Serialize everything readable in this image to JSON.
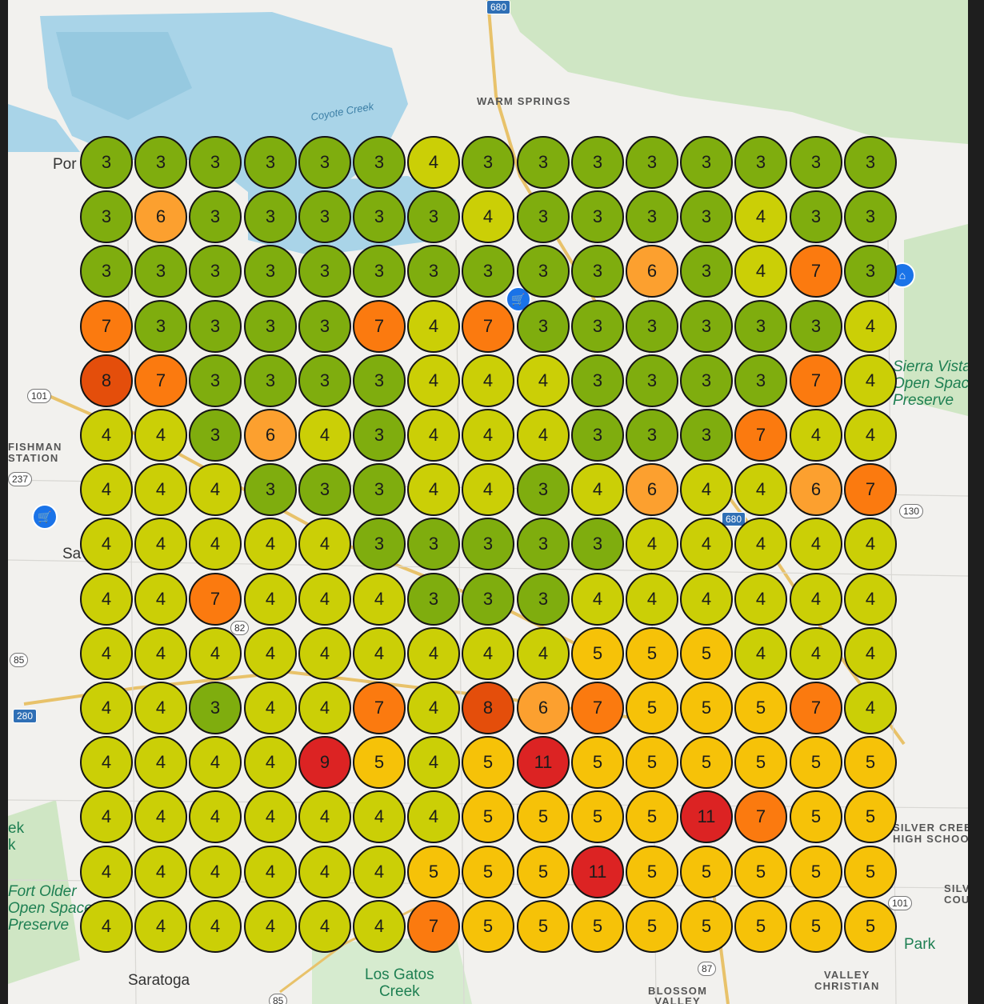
{
  "map": {
    "labels": {
      "warm_springs": "WARM SPRINGS",
      "coyote_creek": "Coyote Creek",
      "sierra_vista": "Sierra Vista\nOpen Space\nPreserve",
      "saratoga": "Saratoga",
      "los_gatos_creek": "Los Gatos\nCreek",
      "blossom_valley": "BLOSSOM\nVALLEY",
      "valley_christian": "VALLEY\nCHRISTIAN",
      "silver_creek_hs": "SILVER CREEK\nHIGH SCHOOL",
      "fisherman_station": "FISHMAN\nSTATION",
      "fort_older": "Fort Older\nOpen Space\nPreserve",
      "creek_left": "ek\nk",
      "silv": "SILV\nCOU",
      "park_right": "Park",
      "ponderosa": "PONDEROSA",
      "sa": "Sa",
      "por": "Por"
    },
    "shields": {
      "r680_top": "680",
      "r101": "101",
      "r237": "237",
      "r85": "85",
      "r280": "280",
      "r82": "82",
      "r680": "680",
      "r130": "130",
      "r87": "87",
      "r85_bottom": "85",
      "r101_right": "101"
    },
    "icons": [
      "shopping-cart-icon",
      "park-icon",
      "museum-icon"
    ]
  },
  "grid": {
    "rows": [
      [
        3,
        3,
        3,
        3,
        3,
        3,
        4,
        3,
        3,
        3,
        3,
        3,
        3,
        3,
        3
      ],
      [
        3,
        6,
        3,
        3,
        3,
        3,
        3,
        4,
        3,
        3,
        3,
        3,
        4,
        3,
        3
      ],
      [
        3,
        3,
        3,
        3,
        3,
        3,
        3,
        3,
        3,
        3,
        6,
        3,
        4,
        7,
        3
      ],
      [
        7,
        3,
        3,
        3,
        3,
        7,
        4,
        7,
        3,
        3,
        3,
        3,
        3,
        3,
        4
      ],
      [
        8,
        7,
        3,
        3,
        3,
        3,
        4,
        4,
        4,
        3,
        3,
        3,
        3,
        7,
        4
      ],
      [
        4,
        4,
        3,
        6,
        4,
        3,
        4,
        4,
        4,
        3,
        3,
        3,
        7,
        4,
        4
      ],
      [
        4,
        4,
        4,
        3,
        3,
        3,
        4,
        4,
        3,
        4,
        6,
        4,
        4,
        6,
        7
      ],
      [
        4,
        4,
        4,
        4,
        4,
        3,
        3,
        3,
        3,
        3,
        4,
        4,
        4,
        4,
        4
      ],
      [
        4,
        4,
        7,
        4,
        4,
        4,
        3,
        3,
        3,
        4,
        4,
        4,
        4,
        4,
        4
      ],
      [
        4,
        4,
        4,
        4,
        4,
        4,
        4,
        4,
        4,
        5,
        5,
        5,
        4,
        4,
        4
      ],
      [
        4,
        4,
        3,
        4,
        4,
        7,
        4,
        8,
        6,
        7,
        5,
        5,
        5,
        7,
        4
      ],
      [
        4,
        4,
        4,
        4,
        9,
        5,
        4,
        5,
        11,
        5,
        5,
        5,
        5,
        5,
        5
      ],
      [
        4,
        4,
        4,
        4,
        4,
        4,
        4,
        5,
        5,
        5,
        5,
        11,
        7,
        5,
        5
      ],
      [
        4,
        4,
        4,
        4,
        4,
        4,
        5,
        5,
        5,
        11,
        5,
        5,
        5,
        5,
        5
      ],
      [
        4,
        4,
        4,
        4,
        4,
        4,
        7,
        5,
        5,
        5,
        5,
        5,
        5,
        5,
        5
      ]
    ],
    "colors": {
      "3": "#7fad0e",
      "4": "#cbcf06",
      "5": "#f6c208",
      "6": "#fca02f",
      "7": "#fb7a0f",
      "8": "#e44e0b",
      "9": "#dc2323",
      "11": "#dc2323"
    }
  }
}
